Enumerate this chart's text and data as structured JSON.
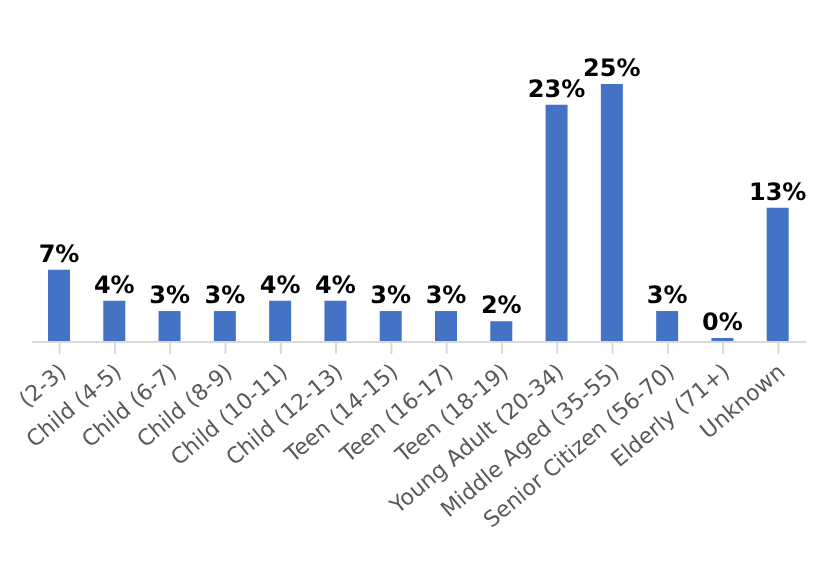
{
  "chart_data": {
    "type": "bar",
    "categories": [
      "(2-3)",
      "Child (4-5)",
      "Child (6-7)",
      "Child (8-9)",
      "Child (10-11)",
      "Child (12-13)",
      "Teen (14-15)",
      "Teen (16-17)",
      "Teen (18-19)",
      "Young Adult (20-34)",
      "Middle Aged (35-55)",
      "Senior Citizen (56-70)",
      "Elderly (71+)",
      "Unknown"
    ],
    "values": [
      7,
      4,
      3,
      3,
      4,
      4,
      3,
      3,
      2,
      23,
      25,
      3,
      0,
      13
    ],
    "value_labels": [
      "7%",
      "4%",
      "3%",
      "3%",
      "4%",
      "4%",
      "3%",
      "3%",
      "2%",
      "23%",
      "25%",
      "3%",
      "0%",
      "13%"
    ],
    "color": "#4472c4",
    "tick_labels": "x"
  }
}
